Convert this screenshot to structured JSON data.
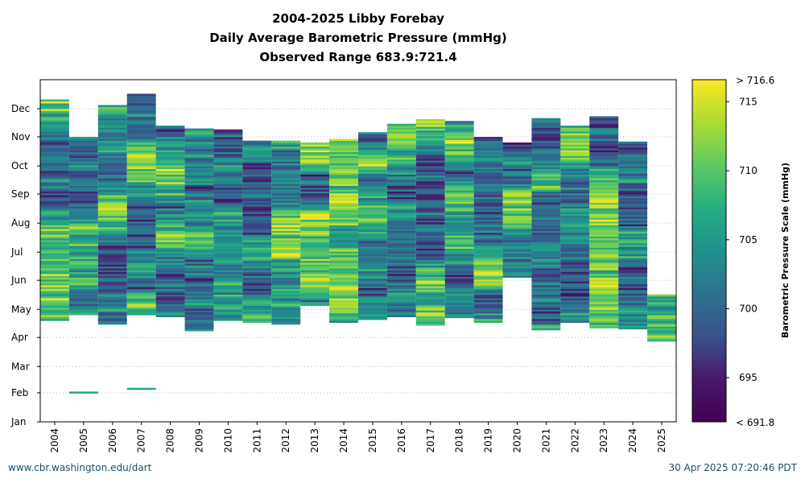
{
  "chart_data": {
    "type": "heatmap",
    "title": "2004-2025 Libby Forebay",
    "subtitle": "Daily Average Barometric Pressure (mmHg)",
    "range_label": "Observed Range 683.9:721.4",
    "x_categories": [
      "2004",
      "2005",
      "2006",
      "2007",
      "2008",
      "2009",
      "2010",
      "2011",
      "2012",
      "2013",
      "2014",
      "2015",
      "2016",
      "2017",
      "2018",
      "2019",
      "2020",
      "2021",
      "2022",
      "2023",
      "2024",
      "2025"
    ],
    "y_categories": [
      "Jan",
      "Feb",
      "Mar",
      "Apr",
      "May",
      "Jun",
      "Jul",
      "Aug",
      "Sep",
      "Oct",
      "Nov",
      "Dec"
    ],
    "colorbar": {
      "label": "Barometric Pressure Scale (mmHg)",
      "min": 691.8,
      "max": 716.6,
      "top_label": "> 716.6",
      "bottom_label": "< 691.8",
      "ticks": [
        "695",
        "700",
        "705",
        "710",
        "715"
      ],
      "colormap": "viridis"
    },
    "grid": "horizontal dotted",
    "coverage_day_of_year": [
      {
        "year": "2004",
        "start": 109,
        "end": 343
      },
      {
        "year": "2005",
        "start": 115,
        "end": 304
      },
      {
        "year": "2006",
        "start": 105,
        "end": 337
      },
      {
        "year": "2007",
        "start": 115,
        "end": 350
      },
      {
        "year": "2008",
        "start": 113,
        "end": 316
      },
      {
        "year": "2009",
        "start": 98,
        "end": 313
      },
      {
        "year": "2010",
        "start": 109,
        "end": 312
      },
      {
        "year": "2011",
        "start": 107,
        "end": 300
      },
      {
        "year": "2012",
        "start": 105,
        "end": 299
      },
      {
        "year": "2013",
        "start": 125,
        "end": 298
      },
      {
        "year": "2014",
        "start": 107,
        "end": 302
      },
      {
        "year": "2015",
        "start": 110,
        "end": 308
      },
      {
        "year": "2016",
        "start": 113,
        "end": 318
      },
      {
        "year": "2017",
        "start": 104,
        "end": 322
      },
      {
        "year": "2018",
        "start": 112,
        "end": 321
      },
      {
        "year": "2019",
        "start": 107,
        "end": 303
      },
      {
        "year": "2020",
        "start": 155,
        "end": 298
      },
      {
        "year": "2021",
        "start": 99,
        "end": 323
      },
      {
        "year": "2022",
        "start": 107,
        "end": 315
      },
      {
        "year": "2023",
        "start": 101,
        "end": 326
      },
      {
        "year": "2024",
        "start": 100,
        "end": 298
      },
      {
        "year": "2025",
        "start": 87,
        "end": 136
      }
    ],
    "isolated_days": [
      {
        "year": "2005",
        "day": 32
      },
      {
        "year": "2007",
        "day": 36
      }
    ]
  },
  "footer": {
    "left": "www.cbr.washington.edu/dart",
    "right": "30 Apr 2025 07:20:46 PDT"
  }
}
